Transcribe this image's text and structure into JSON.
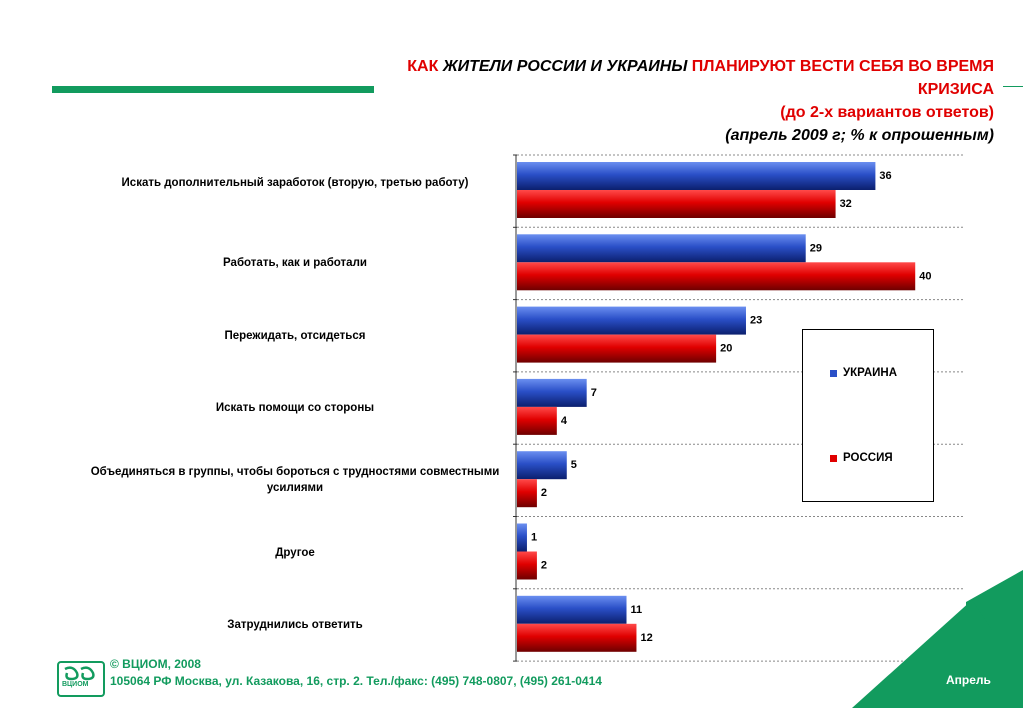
{
  "title": {
    "part1": "КАК ",
    "part2": "ЖИТЕЛИ РОССИИ И УКРАИНЫ ",
    "part3": "ПЛАНИРУЮТ ВЕСТИ СЕБЯ ВО ВРЕМЯ КРИЗИСА",
    "sub1": "(до 2-х вариантов ответов)",
    "sub2": "(апрель 2009 г; % к опрошенным)"
  },
  "chart_data": {
    "type": "bar",
    "orientation": "horizontal",
    "categories": [
      "Искать дополнительный заработок (вторую, третью работу)",
      "Работать, как и работали",
      "Пережидать, отсидеться",
      "Искать помощи со стороны",
      "Объединяться в группы, чтобы бороться с трудностями совместными усилиями",
      "Другое",
      "Затруднились ответить"
    ],
    "series": [
      {
        "name": "УКРАИНА",
        "color": "#2a4fc7",
        "values": [
          36,
          29,
          23,
          7,
          5,
          1,
          11
        ]
      },
      {
        "name": "РОССИЯ",
        "color": "#e00000",
        "values": [
          32,
          40,
          20,
          4,
          2,
          2,
          12
        ]
      }
    ],
    "xlim": [
      0,
      45
    ],
    "grid": "dotted",
    "legend_position": "right",
    "data_labels": true
  },
  "footer": {
    "logo_text": "ВЦИОМ",
    "copyright": "© ВЦИОМ, 2008",
    "address": "105064 РФ Москва, ул. Казакова, 16, стр. 2.  Тел./факс: (495) 748-0807, (495) 261-0414",
    "month": "Апрель"
  },
  "colors": {
    "accent_green": "#129b5e",
    "title_red": "#e00000"
  }
}
